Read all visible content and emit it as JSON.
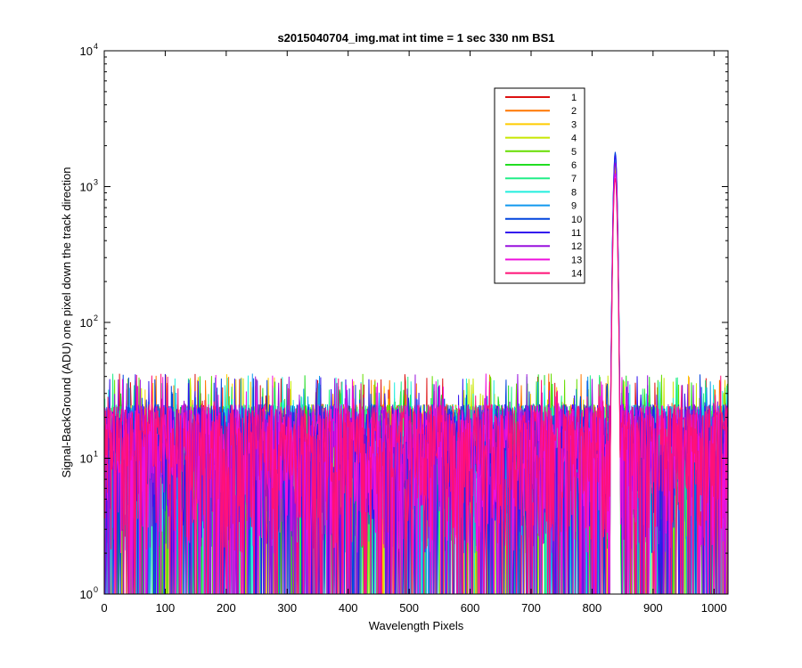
{
  "chart_data": {
    "type": "line",
    "title": "s2015040704_img.mat int time = 1 sec  330 nm BS1",
    "xlabel": "Wavelength Pixels",
    "ylabel": "Signal-BackGround (ADU) one pixel down the track direction",
    "xlim": [
      0,
      1023
    ],
    "ylim": [
      1,
      10000
    ],
    "yscale": "log",
    "grid": false,
    "legend_position": "top-right (inside)",
    "x_ticks": [
      0,
      100,
      200,
      300,
      400,
      500,
      600,
      700,
      800,
      900,
      1000
    ],
    "x_tick_labels": [
      "0",
      "100",
      "200",
      "300",
      "400",
      "500",
      "600",
      "700",
      "800",
      "900",
      "1000"
    ],
    "y_ticks": [
      1,
      10,
      100,
      1000,
      10000
    ],
    "y_tick_bases": [
      "10",
      "10",
      "10",
      "10",
      "10"
    ],
    "y_tick_exponents": [
      "0",
      "1",
      "2",
      "3",
      "4"
    ],
    "noise_description": {
      "x_range": [
        0,
        1023
      ],
      "typical_range": [
        2,
        25
      ],
      "max_noise": 42
    },
    "peak": {
      "center": 838,
      "halfwidth": 8,
      "values_range": [
        1100,
        1800
      ]
    },
    "series": [
      {
        "name": "1",
        "color": "#dd1111",
        "peak_value": 1300
      },
      {
        "name": "2",
        "color": "#ff7700",
        "peak_value": 1350
      },
      {
        "name": "3",
        "color": "#ffcc00",
        "peak_value": 1400
      },
      {
        "name": "4",
        "color": "#c8e600",
        "peak_value": 1450
      },
      {
        "name": "5",
        "color": "#66dd00",
        "peak_value": 1500
      },
      {
        "name": "6",
        "color": "#22dd22",
        "peak_value": 1550
      },
      {
        "name": "7",
        "color": "#22ee88",
        "peak_value": 1600
      },
      {
        "name": "8",
        "color": "#22eedd",
        "peak_value": 1650
      },
      {
        "name": "9",
        "color": "#1199ee",
        "peak_value": 1750
      },
      {
        "name": "10",
        "color": "#0044dd",
        "peak_value": 1800
      },
      {
        "name": "11",
        "color": "#3311ee",
        "peak_value": 1700
      },
      {
        "name": "12",
        "color": "#9911dd",
        "peak_value": 1500
      },
      {
        "name": "13",
        "color": "#ee11dd",
        "peak_value": 1250
      },
      {
        "name": "14",
        "color": "#ff1177",
        "peak_value": 1150
      }
    ]
  }
}
